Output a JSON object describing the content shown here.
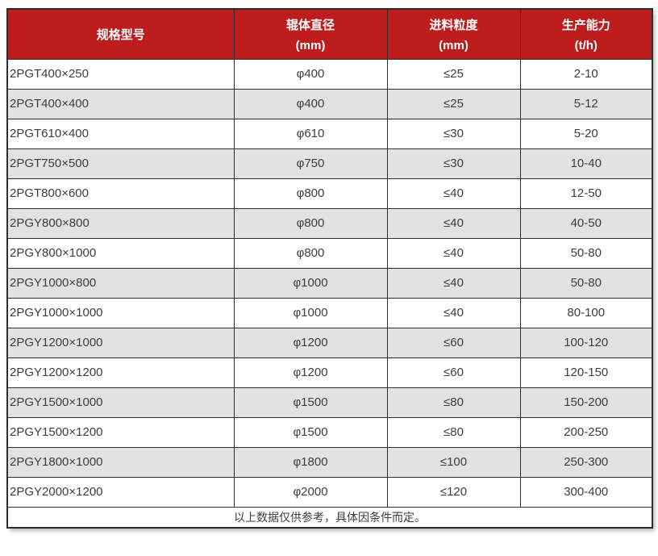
{
  "chart_data": {
    "type": "table",
    "columns": [
      {
        "label": "规格型号",
        "unit": ""
      },
      {
        "label": "辊体直径",
        "unit": "(mm)"
      },
      {
        "label": "进料粒度",
        "unit": "(mm)"
      },
      {
        "label": "生产能力",
        "unit": "(t/h)"
      }
    ],
    "rows": [
      [
        "2PGT400×250",
        "φ400",
        "≤25",
        "2-10"
      ],
      [
        "2PGT400×400",
        "φ400",
        "≤25",
        "5-12"
      ],
      [
        "2PGT610×400",
        "φ610",
        "≤30",
        "5-20"
      ],
      [
        "2PGT750×500",
        "φ750",
        "≤30",
        "10-40"
      ],
      [
        "2PGT800×600",
        "φ800",
        "≤40",
        "12-50"
      ],
      [
        "2PGY800×800",
        "φ800",
        "≤40",
        "40-50"
      ],
      [
        "2PGY800×1000",
        "φ800",
        "≤40",
        "50-80"
      ],
      [
        "2PGY1000×800",
        "φ1000",
        "≤40",
        "50-80"
      ],
      [
        "2PGY1000×1000",
        "φ1000",
        "≤40",
        "80-100"
      ],
      [
        "2PGY1200×1000",
        "φ1200",
        "≤60",
        "100-120"
      ],
      [
        "2PGY1200×1200",
        "φ1200",
        "≤60",
        "120-150"
      ],
      [
        "2PGY1500×1000",
        "φ1500",
        "≤80",
        "150-200"
      ],
      [
        "2PGY1500×1200",
        "φ1500",
        "≤80",
        "200-250"
      ],
      [
        "2PGY1800×1000",
        "φ1800",
        "≤100",
        "250-300"
      ],
      [
        "2PGY2000×1200",
        "φ2000",
        "≤120",
        "300-400"
      ]
    ],
    "footnote": "以上数据仅供参考，具体因条件而定。"
  },
  "colors": {
    "header_bg": "#bd1d1d",
    "header_text": "#ffffff",
    "row_bg": "#ffffff",
    "row_alt_bg": "#e2e2e2",
    "border": "#2e2e2e",
    "text": "#3d3d3d"
  }
}
